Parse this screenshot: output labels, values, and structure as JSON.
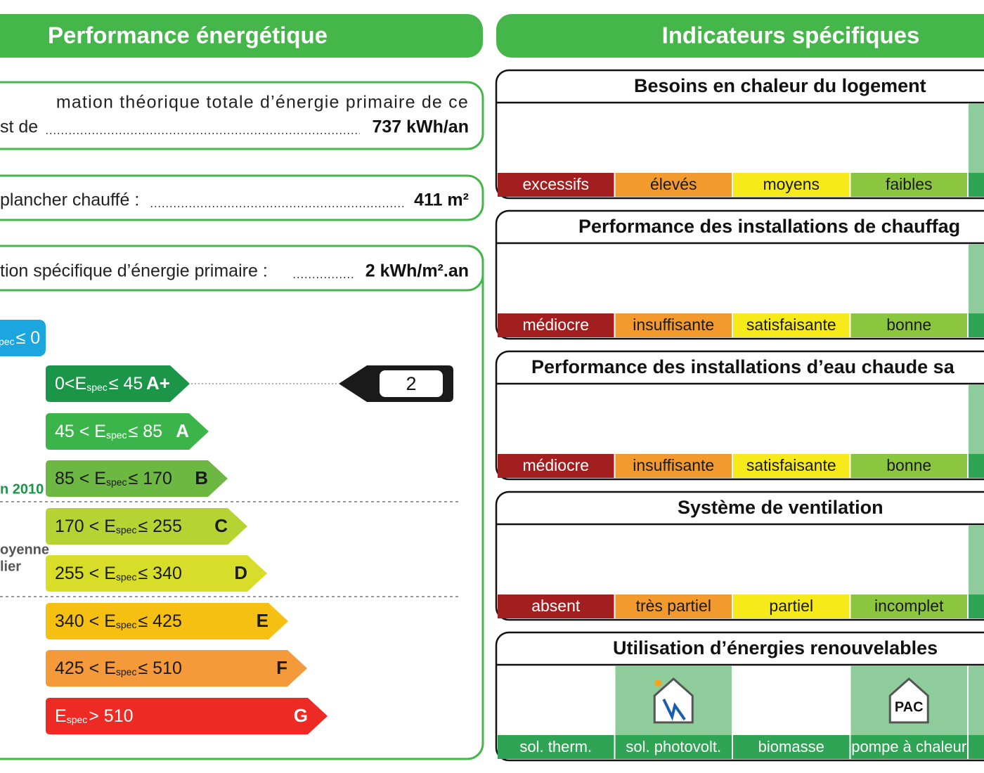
{
  "left": {
    "title": "Performance énergétique",
    "consumption": {
      "line1": "mation théorique totale d’énergie primaire de ce",
      "label": "st de",
      "value": "737 kWh/an"
    },
    "floor": {
      "label": "plancher chauffé :",
      "value": "411 m²"
    },
    "specific": {
      "label": "tion spécifique d’énergie primaire :",
      "value": "2 kWh/m².an"
    },
    "classes": [
      {
        "sub": "pec",
        "post": "≤ 0",
        "color": "#1ba6df",
        "text_color": "#ffffff"
      },
      {
        "pre": "0<E",
        "sub": "spec",
        "post": "≤ 45",
        "letter": "A+",
        "color": "#1b9548",
        "text_color": "#ffffff"
      },
      {
        "pre": "45 < E",
        "sub": "spec",
        "post": "≤ 85",
        "letter": "A",
        "color": "#3bb54a",
        "text_color": "#ffffff"
      },
      {
        "pre": "85 < E",
        "sub": "spec",
        "post": "≤ 170",
        "letter": "B",
        "color": "#6cb843",
        "text_color": "#1a1a1a"
      },
      {
        "pre": "170 < E",
        "sub": "spec",
        "post": "≤ 255",
        "letter": "C",
        "color": "#b6d334",
        "text_color": "#1a1a1a"
      },
      {
        "pre": "255 < E",
        "sub": "spec",
        "post": "≤ 340",
        "letter": "D",
        "color": "#d8dd2a",
        "text_color": "#1a1a1a"
      },
      {
        "pre": "340 < E",
        "sub": "spec",
        "post": "≤ 425",
        "letter": "E",
        "color": "#f6c012",
        "text_color": "#1a1a1a"
      },
      {
        "pre": "425 < E",
        "sub": "spec",
        "post": "≤ 510",
        "letter": "F",
        "color": "#f59a3b",
        "text_color": "#1a1a1a"
      },
      {
        "pre": "E",
        "sub": "spec",
        "post": "> 510",
        "letter": "G",
        "color": "#ee2a24",
        "text_color": "#ffffff"
      }
    ],
    "side_notes": [
      "n 2010",
      "oyenne",
      "lier"
    ],
    "indicator": 2
  },
  "right": {
    "title": "Indicateurs spécifiques",
    "level_colors": [
      "#a31f1f",
      "#f39a2e",
      "#f7ea1a",
      "#8cc63f"
    ],
    "level_text_colors": [
      "#ffffff",
      "#1a1a1a",
      "#1a1a1a",
      "#1a1a1a"
    ],
    "panels": [
      {
        "title": "Besoins en chaleur du logement",
        "levels": [
          "excessifs",
          "élevés",
          "moyens",
          "faibles"
        ]
      },
      {
        "title": "Performance des installations de chauffag",
        "levels": [
          "médiocre",
          "insuffisante",
          "satisfaisante",
          "bonne"
        ]
      },
      {
        "title": "Performance des installations d’eau chaude sa",
        "levels": [
          "médiocre",
          "insuffisante",
          "satisfaisante",
          "bonne"
        ]
      },
      {
        "title": "Système de ventilation",
        "levels": [
          "absent",
          "très partiel",
          "partiel",
          "incomplet"
        ]
      }
    ],
    "renewables": {
      "title": "Utilisation d’énergies renouvelables",
      "sources": [
        "sol. therm.",
        "sol. photovolt.",
        "biomasse",
        "pompe à chaleur"
      ],
      "icon_label": "PAC"
    }
  }
}
